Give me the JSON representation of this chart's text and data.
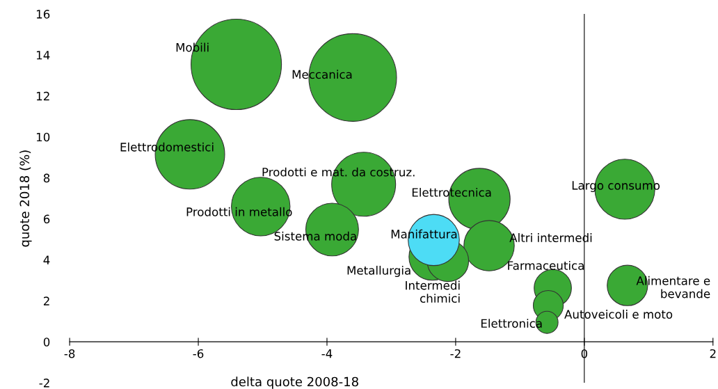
{
  "chart_data": {
    "type": "bubble",
    "xlabel": "delta quote 2008-18",
    "ylabel": "quote 2018 (%)",
    "xlim": [
      -8,
      2
    ],
    "xticks": [
      -8,
      -6,
      -4,
      -2,
      0,
      2
    ],
    "ylim": [
      -2,
      16
    ],
    "yticks": [
      -2,
      0,
      2,
      4,
      6,
      8,
      10,
      12,
      14,
      16
    ],
    "grid": false,
    "legend": false,
    "ref_lines": [
      {
        "axis": "x",
        "value": 0,
        "color": "#000000"
      }
    ],
    "series": [
      {
        "color": "#3aa935",
        "x": [
          -5.41,
          -3.6,
          -6.13,
          -3.43,
          -5.03,
          -3.92,
          -1.63,
          0.63,
          -1.48,
          -2.36,
          -2.12,
          -0.49,
          -0.56,
          -0.58,
          0.67
        ],
        "values": [
          13.54,
          12.9,
          9.15,
          7.69,
          6.6,
          5.48,
          6.97,
          7.45,
          4.69,
          4.15,
          3.95,
          2.62,
          1.77,
          0.95,
          2.75
        ],
        "sizes": [
          1,
          0.94,
          0.59,
          0.5,
          0.42,
          0.34,
          0.46,
          0.44,
          0.31,
          0.27,
          0.21,
          0.17,
          0.11,
          0.06,
          0.2
        ],
        "value_labels": [
          "Mobili",
          "Meccanica",
          "Elettrodomestici",
          "Prodotti e mat. da costruz.",
          "Prodotti in metallo",
          "Sistema moda",
          "Elettrotecnica",
          "Largo consumo",
          "Altri intermedi",
          "Metallurgia",
          "Intermedi\nchimici",
          "Farmaceutica",
          "Autoveicoli e moto",
          "Elettronica",
          "Alimentare e\nbevande"
        ]
      },
      {
        "color": "#4ddcf5",
        "x": [
          -2.34
        ],
        "values": [
          4.97
        ],
        "sizes": [
          0.32
        ],
        "value_labels": [
          "Manifattura"
        ]
      }
    ]
  }
}
